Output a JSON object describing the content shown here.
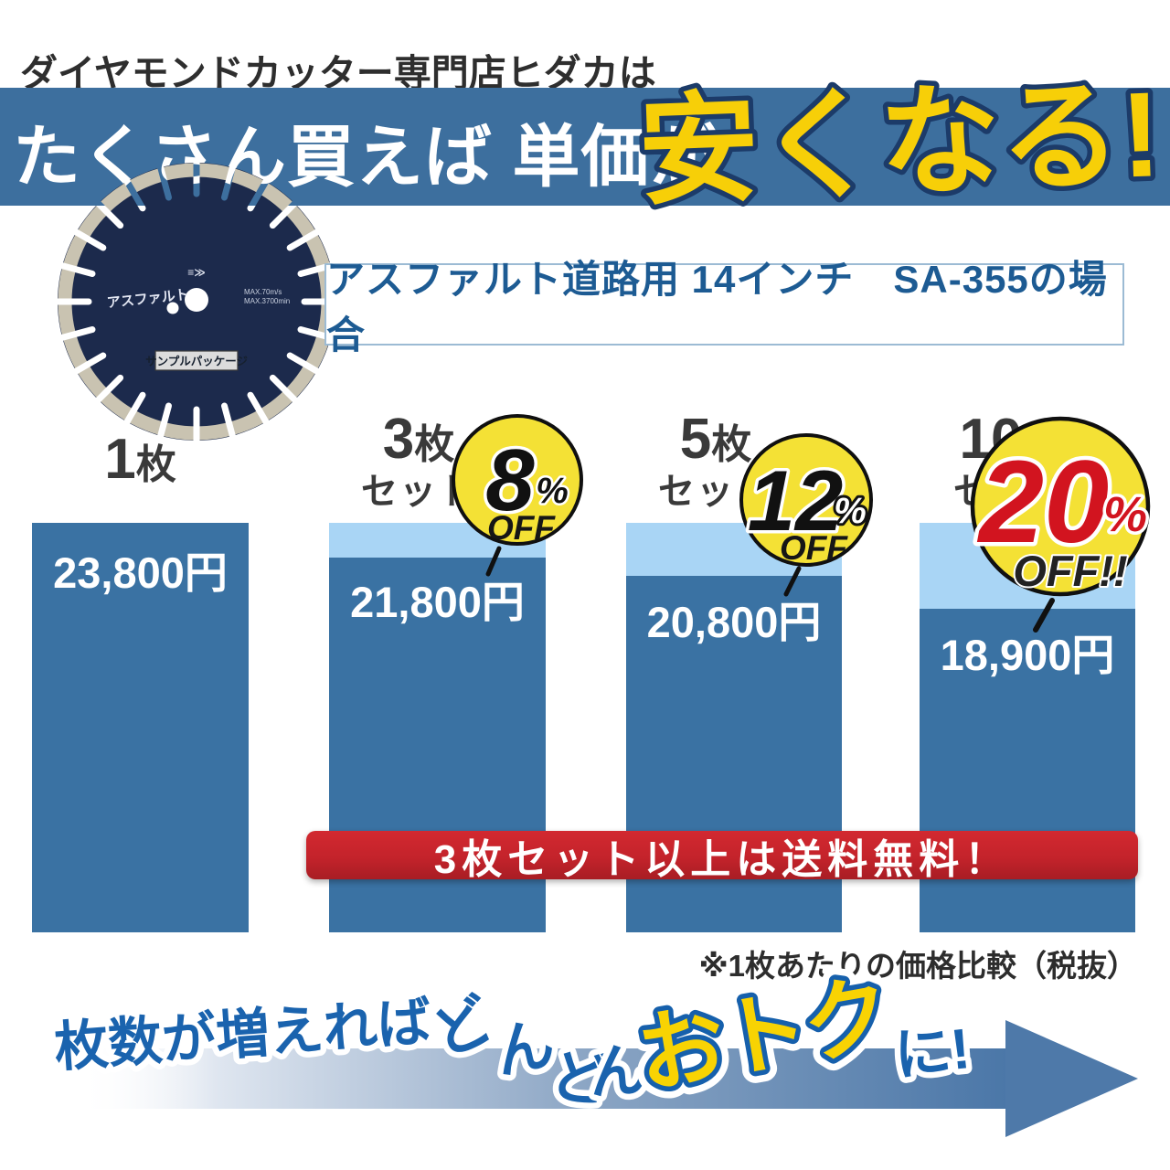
{
  "promo": {
    "header_line": "ダイヤモンドカッター専門店ヒダカは",
    "banner_text": "たくさん買えば 単価が",
    "banner_highlight": "安くなる!",
    "product_label": "アスファルト道路用 14インチ　SA-355の場合",
    "blade": {
      "name_text": "アスファルト",
      "spec_line1": "MAX.70m/s",
      "spec_line2": "MAX.3700min",
      "logo_mark": "≡≫",
      "tag": "サンプルパッケージ"
    },
    "shipping_banner": "3枚セット以上は送料無料！",
    "price_note": "※1枚あたりの価格比較（税抜）",
    "footer": {
      "lead": "枚数が増えれば",
      "don": [
        "ど",
        "ん",
        "ど",
        "ん"
      ],
      "highlight": "おトク",
      "tail": "に!"
    }
  },
  "bars": [
    {
      "qty": "1",
      "unit": "枚",
      "set_label": "",
      "price": "23,800円",
      "discount_num": "",
      "discount_pct": "",
      "off_label": ""
    },
    {
      "qty": "3",
      "unit": "枚",
      "set_label": "セット",
      "price": "21,800円",
      "discount_num": "8",
      "discount_pct": "%",
      "off_label": "OFF"
    },
    {
      "qty": "5",
      "unit": "枚",
      "set_label": "セット",
      "price": "20,800円",
      "discount_num": "12",
      "discount_pct": "%",
      "off_label": "OFF"
    },
    {
      "qty": "10",
      "unit": "枚",
      "set_label": "セット",
      "price": "18,900円",
      "discount_num": "20",
      "discount_pct": "%",
      "off_label": "OFF!!"
    }
  ],
  "chart_data": {
    "type": "bar",
    "title": "たくさん買えば単価が安くなる（アスファルト道路用 14インチ SA-355）",
    "categories": [
      "1枚",
      "3枚セット",
      "5枚セット",
      "10枚セット"
    ],
    "values": [
      23800,
      21800,
      20800,
      18900
    ],
    "value_labels": [
      "23,800円",
      "21,800円",
      "20,800円",
      "18,900円"
    ],
    "discounts_percent": [
      0,
      8,
      12,
      20
    ],
    "discount_labels": [
      "",
      "8%OFF",
      "12%OFF",
      "20%OFF!!"
    ],
    "unit": "円",
    "note": "※1枚あたりの価格比較（税抜）",
    "ylim": [
      0,
      23800
    ],
    "grid": false,
    "bar_color": "#3a72a3",
    "discount_color": "#a9d5f5"
  },
  "colors": {
    "banner_blue": "#3d6f9e",
    "bar_blue": "#3a72a3",
    "discount_light_blue": "#a9d5f5",
    "highlight_yellow": "#f7cf08",
    "highlight_outline_navy": "#1c3b69",
    "badge_yellow": "#f4e135",
    "badge_red_text": "#d2141f",
    "shipping_red": "#c4232b",
    "footer_text_blue": "#1a63ae",
    "arrow_steel_blue": "#4b77a8"
  }
}
